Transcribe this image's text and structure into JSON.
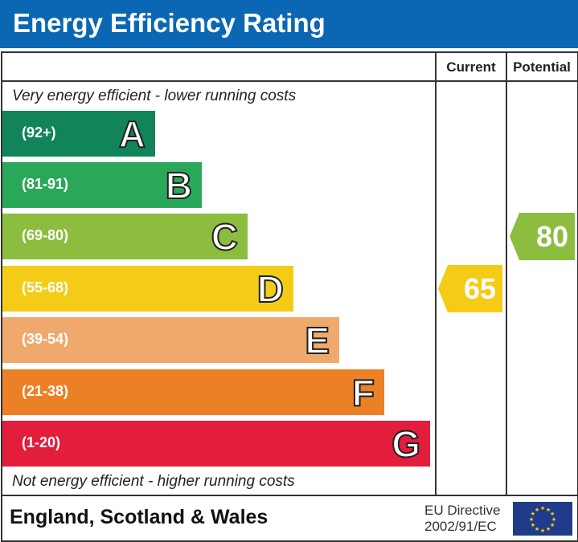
{
  "title": "Energy Efficiency Rating",
  "chart_data": {
    "type": "bar",
    "columns": [
      "Current",
      "Potential"
    ],
    "top_note": "Very energy efficient - lower running costs",
    "bottom_note": "Not energy efficient - higher running costs",
    "bands": [
      {
        "letter": "A",
        "range": "(92+)",
        "color": "#12845a"
      },
      {
        "letter": "B",
        "range": "(81-91)",
        "color": "#2aa85a"
      },
      {
        "letter": "C",
        "range": "(69-80)",
        "color": "#8dbd3f"
      },
      {
        "letter": "D",
        "range": "(55-68)",
        "color": "#f4cc17"
      },
      {
        "letter": "E",
        "range": "(39-54)",
        "color": "#f0a96c"
      },
      {
        "letter": "F",
        "range": "(21-38)",
        "color": "#ec8026"
      },
      {
        "letter": "G",
        "range": "(1-20)",
        "color": "#e31d3c"
      }
    ],
    "current": {
      "value": "65",
      "band": "D",
      "color": "#f4cc17"
    },
    "potential": {
      "value": "80",
      "band": "C",
      "color": "#8dbd3f"
    }
  },
  "footer": {
    "region": "England, Scotland & Wales",
    "directive_line1": "EU Directive",
    "directive_line2": "2002/91/EC"
  }
}
